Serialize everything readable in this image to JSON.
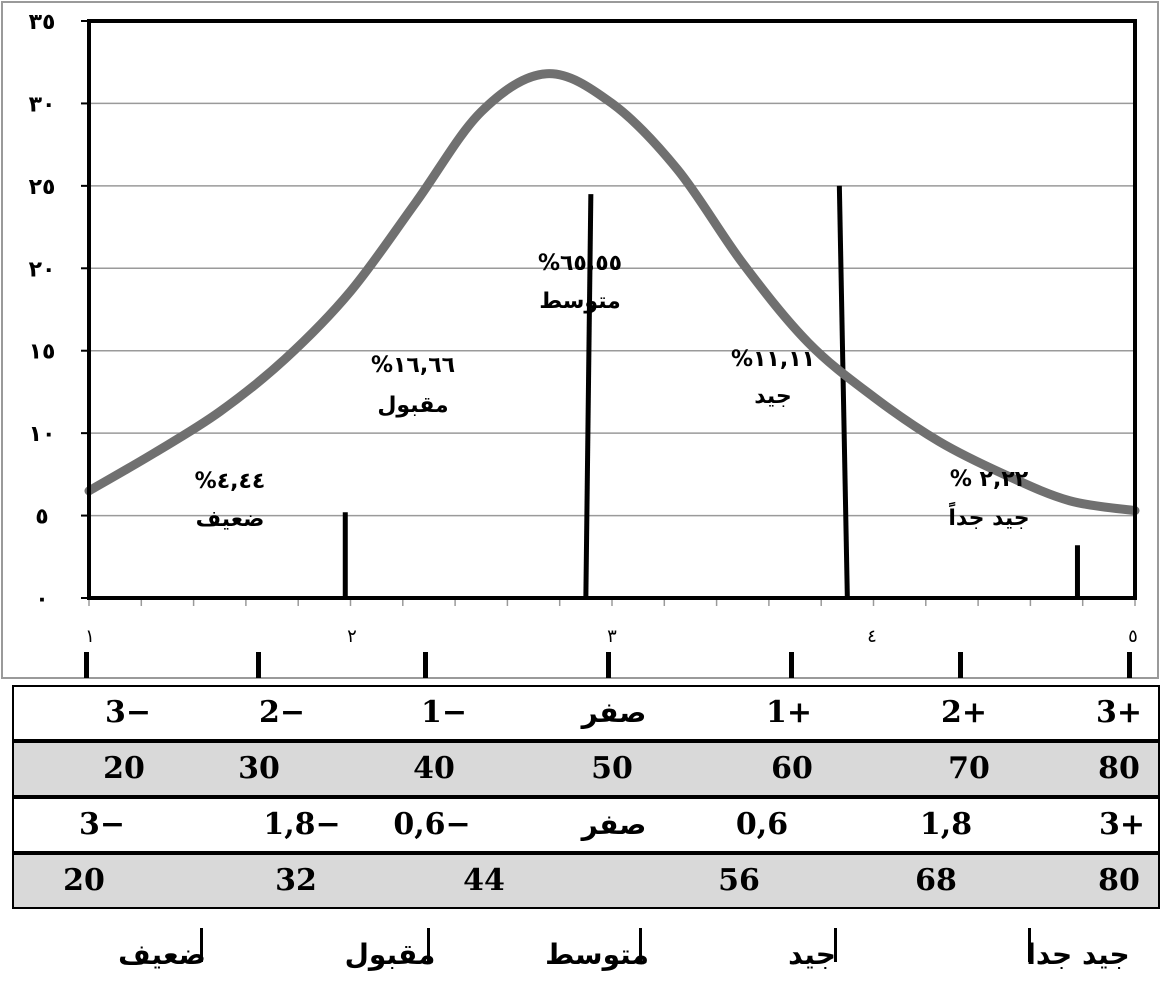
{
  "chart_data": {
    "type": "line",
    "title": "",
    "xlabel": "",
    "ylabel": "",
    "x_ticks": [
      "١",
      "٢",
      "٣",
      "٤",
      "٥"
    ],
    "y_ticks": [
      "٠",
      "٥",
      "١٠",
      "١٥",
      "٢٠",
      "٢٥",
      "٣٠",
      "٣٥"
    ],
    "xlim": [
      1,
      5
    ],
    "ylim": [
      0,
      35
    ],
    "grid": true,
    "series": [
      {
        "values_x": [
          1,
          1.25,
          1.5,
          1.75,
          2,
          2.25,
          2.5,
          2.75,
          3,
          3.25,
          3.5,
          3.75,
          4,
          4.25,
          4.5,
          4.75,
          5
        ],
        "values_y": [
          6.5,
          8.8,
          11.3,
          14.5,
          18.6,
          24,
          29.5,
          31.8,
          30,
          26,
          20.3,
          15.5,
          12.2,
          9.5,
          7.5,
          5.9,
          5.3
        ]
      }
    ],
    "bars": [
      {
        "x": 1.98,
        "y": 5.2
      },
      {
        "x": 2.9,
        "y": 24.5
      },
      {
        "x": 3.9,
        "y": 25
      },
      {
        "x": 4.78,
        "y": 3.2
      }
    ],
    "annotations": [
      {
        "percent": "%٤,٤٤",
        "label": "ضعيف"
      },
      {
        "percent": "%١٦,٦٦",
        "label": "مقبول"
      },
      {
        "percent": "%٦٥,٥٥",
        "label": "متوسط"
      },
      {
        "percent": "%١١,١١",
        "label": "جيد"
      },
      {
        "percent": "% ٢,٢٢",
        "label": "جيد جداً"
      }
    ]
  },
  "table": {
    "rows": [
      {
        "shaded": false,
        "cells": [
          "3−",
          "2−",
          "1−",
          "صفر",
          "1+",
          "2+",
          "3+"
        ]
      },
      {
        "shaded": true,
        "cells": [
          "20",
          "30",
          "40",
          "50",
          "60",
          "70",
          "80"
        ]
      },
      {
        "shaded": false,
        "cells": [
          "3−",
          "1,8−",
          "0,6−",
          "صفر",
          "0,6",
          "1,8",
          "3+"
        ]
      },
      {
        "shaded": true,
        "cells": [
          "20",
          "32",
          "44",
          "56",
          "68",
          "80"
        ]
      }
    ]
  },
  "grades": [
    "ضعيف",
    "مقبول",
    "متوسط",
    "جيد",
    "جيد جدا"
  ],
  "colors": {
    "curve": "#707070",
    "gridline": "#9a9a9a",
    "frame": "#000000",
    "shade": "#d9d9d9"
  }
}
